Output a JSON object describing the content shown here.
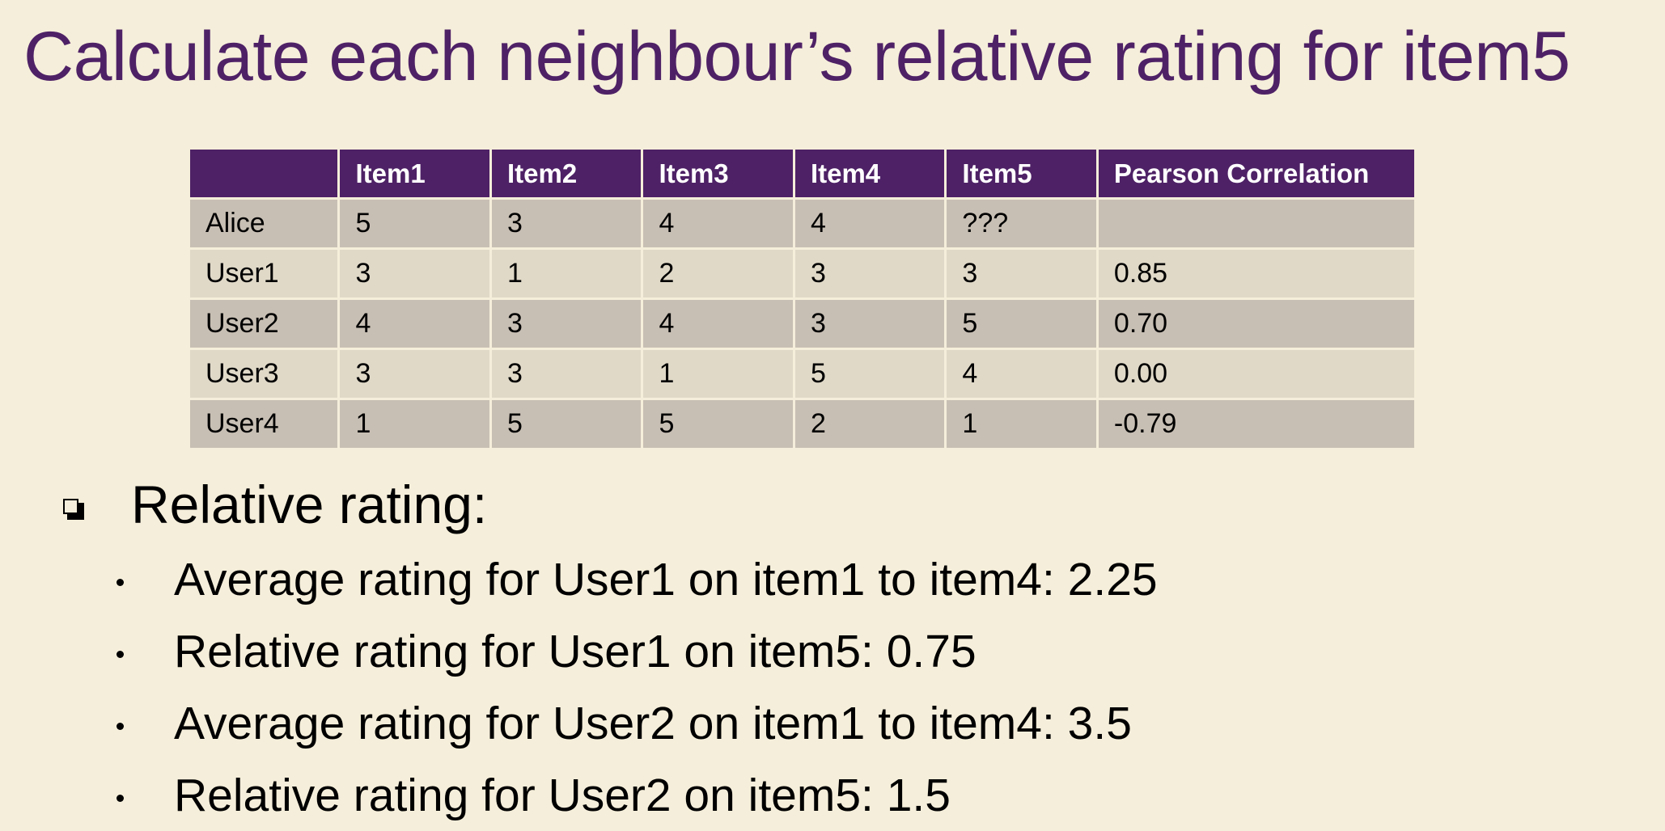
{
  "title": "Calculate each neighbour’s relative rating for item5",
  "table": {
    "headers": [
      "",
      "Item1",
      "Item2",
      "Item3",
      "Item4",
      "Item5",
      "Pearson Correlation"
    ],
    "rows": [
      [
        "Alice",
        "5",
        "3",
        "4",
        "4",
        "???",
        ""
      ],
      [
        "User1",
        "3",
        "1",
        "2",
        "3",
        "3",
        "0.85"
      ],
      [
        "User2",
        "4",
        "3",
        "4",
        "3",
        "5",
        "0.70"
      ],
      [
        "User3",
        "3",
        "3",
        "1",
        "5",
        "4",
        "0.00"
      ],
      [
        "User4",
        "1",
        "5",
        "5",
        "2",
        "1",
        "-0.79"
      ]
    ]
  },
  "bullets": {
    "main": "Relative rating:",
    "items": [
      "Average rating for User1 on item1 to item4: 2.25",
      "Relative rating for User1 on item5: 0.75",
      "Average rating for User2 on item1 to item4: 3.5",
      "Relative rating for User2 on item5: 1.5"
    ]
  },
  "colors": {
    "background": "#F5EEDA",
    "accent": "#4E2166",
    "row_dark": "#C8BFB4",
    "row_light": "#E0D9C8"
  },
  "icons": {
    "main_bullet": "square-bullet-icon",
    "sub_bullet": "dot-bullet-icon"
  }
}
